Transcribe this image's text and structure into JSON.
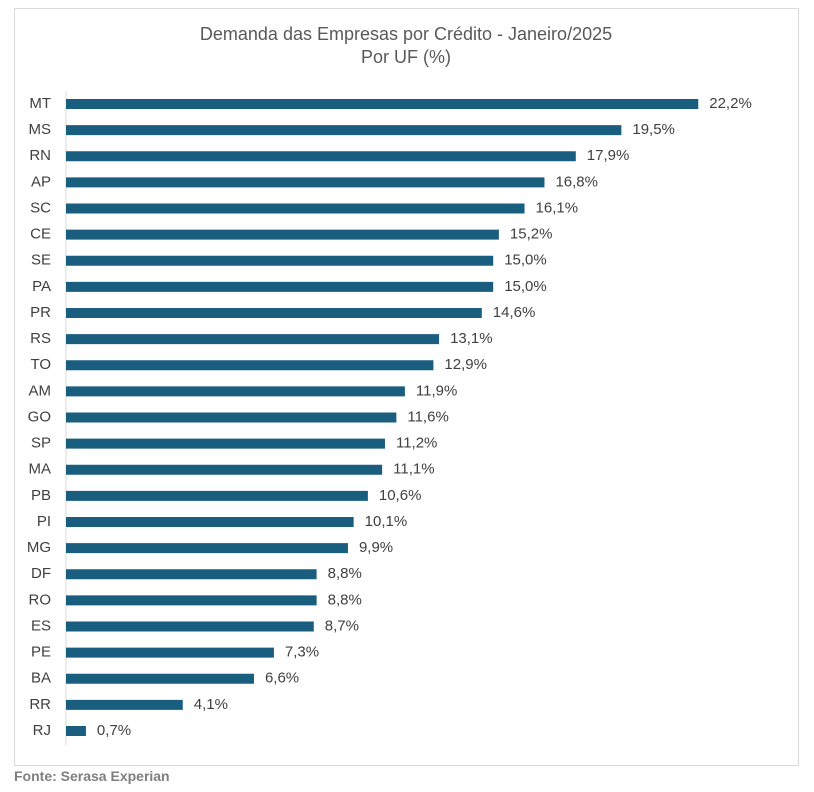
{
  "chart_data": {
    "type": "bar",
    "orientation": "horizontal",
    "title": "Demanda das Empresas por Crédito - Janeiro/2025",
    "subtitle": "Por UF (%)",
    "categories": [
      "MT",
      "MS",
      "RN",
      "AP",
      "SC",
      "CE",
      "SE",
      "PA",
      "PR",
      "RS",
      "TO",
      "AM",
      "GO",
      "SP",
      "MA",
      "PB",
      "PI",
      "MG",
      "DF",
      "RO",
      "ES",
      "PE",
      "BA",
      "RR",
      "RJ"
    ],
    "values": [
      22.2,
      19.5,
      17.9,
      16.8,
      16.1,
      15.2,
      15.0,
      15.0,
      14.6,
      13.1,
      12.9,
      11.9,
      11.6,
      11.2,
      11.1,
      10.6,
      10.1,
      9.9,
      8.8,
      8.8,
      8.7,
      7.3,
      6.6,
      4.1,
      0.7
    ],
    "data_labels": [
      "22,2%",
      "19,5%",
      "17,9%",
      "16,8%",
      "16,1%",
      "15,2%",
      "15,0%",
      "15,0%",
      "14,6%",
      "13,1%",
      "12,9%",
      "11,9%",
      "11,6%",
      "11,2%",
      "11,1%",
      "10,6%",
      "10,1%",
      "9,9%",
      "8,8%",
      "8,8%",
      "8,7%",
      "7,3%",
      "6,6%",
      "4,1%",
      "0,7%"
    ],
    "xlabel": "",
    "ylabel": "",
    "xlim": [
      0,
      25
    ],
    "grid": false,
    "legend": "none",
    "bar_color": "#1a5e7f"
  },
  "footer": {
    "source": "Fonte: Serasa Experian"
  }
}
